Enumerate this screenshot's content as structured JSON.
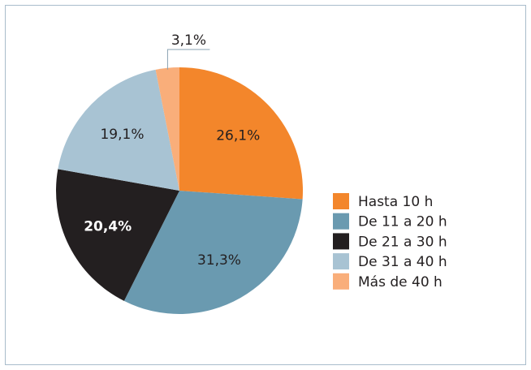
{
  "chart_data": {
    "type": "pie",
    "categories": [
      "Hasta 10 h",
      "De 11 a 20 h",
      "De 21 a 30 h",
      "De 31 a 40 h",
      "Más de 40 h"
    ],
    "values": [
      26.1,
      31.3,
      20.4,
      19.1,
      3.1
    ],
    "value_labels": [
      "26,1%",
      "31,3%",
      "20,4%",
      "19,1%",
      "3,1%"
    ],
    "colors": [
      "#f3862b",
      "#6a9ab0",
      "#231f20",
      "#a8c3d3",
      "#f9ae7a"
    ],
    "legend": "right"
  }
}
